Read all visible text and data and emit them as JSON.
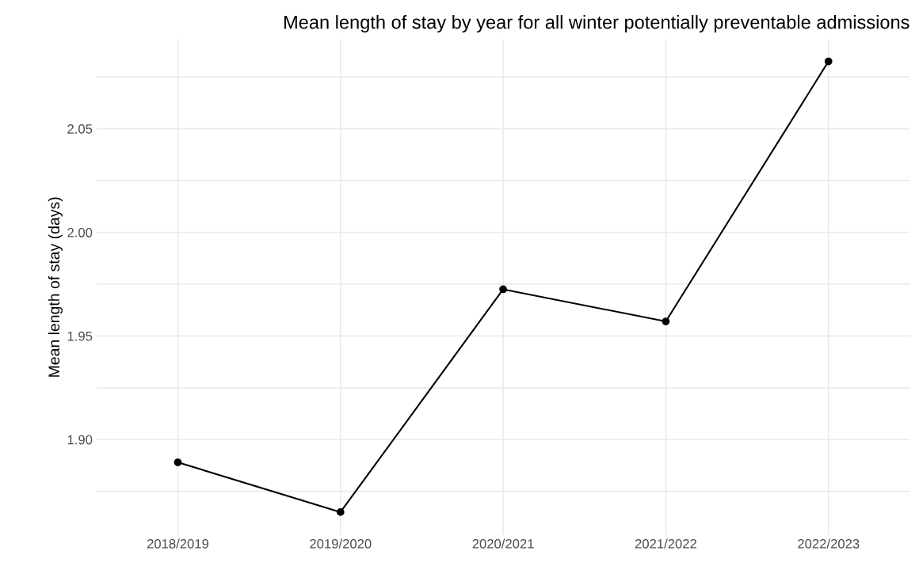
{
  "chart_data": {
    "type": "line",
    "title": "Mean length of stay by year for all winter potentially preventable admissions",
    "ylabel": "Mean length of stay (days)",
    "categories": [
      "2018/2019",
      "2019/2020",
      "2020/2021",
      "2021/2022",
      "2022/2023"
    ],
    "series": [
      {
        "color": "#000000",
        "values": [
          1.889,
          1.865,
          1.9725,
          1.957,
          2.0825
        ]
      }
    ],
    "ylim": [
      1.854,
      2.093
    ],
    "yticks": [
      {
        "value": 1.875,
        "label": null
      },
      {
        "value": 1.9,
        "label": "1.90"
      },
      {
        "value": 1.925,
        "label": null
      },
      1.95,
      {
        "value": 1.975,
        "label": null
      },
      {
        "value": 2.0,
        "label": "2.00"
      },
      {
        "value": 2.025,
        "label": null
      },
      2.05,
      {
        "value": 2.075,
        "label": null
      }
    ],
    "grid": true,
    "marker": "circle",
    "line_style": "solid"
  }
}
